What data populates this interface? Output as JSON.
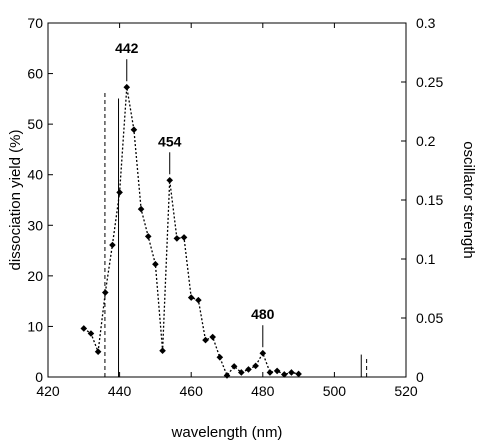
{
  "chart_data": {
    "type": "line",
    "xlabel": "wavelength (nm)",
    "ylabel": "dissociation yield (%)",
    "y2label": "oscillator strength",
    "xlim": [
      420,
      520
    ],
    "ylim": [
      0,
      70
    ],
    "y2lim": [
      0,
      0.3
    ],
    "xticks": [
      "420",
      "440",
      "460",
      "480",
      "500",
      "520"
    ],
    "yticks": [
      "0",
      "10",
      "20",
      "30",
      "40",
      "50",
      "60",
      "70"
    ],
    "y2ticks": [
      "0",
      "0.05",
      "0.1",
      "0.15",
      "0.2",
      "0.25",
      "0.3"
    ],
    "grid": false,
    "series": [
      {
        "style": "dotted line with diamond markers",
        "axis": "left",
        "x": [
          430,
          432,
          434,
          436,
          438,
          440,
          442,
          444,
          446,
          448,
          450,
          452,
          454,
          456,
          458,
          460,
          462,
          464,
          466,
          468,
          470,
          472,
          474,
          476,
          478,
          480,
          482,
          484,
          486,
          488,
          490
        ],
        "y": [
          9.6,
          8.6,
          5.0,
          16.7,
          26.1,
          36.5,
          57.3,
          48.9,
          33.2,
          27.8,
          22.3,
          5.2,
          38.9,
          27.4,
          27.6,
          15.7,
          15.2,
          7.3,
          7.9,
          3.9,
          0.3,
          2.1,
          0.9,
          1.5,
          2.2,
          4.7,
          0.9,
          1.2,
          0.5,
          0.9,
          0.6
        ]
      },
      {
        "style": "solid vertical sticks",
        "axis": "right",
        "x": [
          439.7,
          507.5
        ],
        "y": [
          0.236,
          0.019
        ]
      },
      {
        "style": "dashed vertical sticks",
        "axis": "right",
        "x": [
          435.9,
          509.0
        ],
        "y": [
          0.243,
          0.016
        ]
      }
    ],
    "annotations": [
      {
        "text": "442",
        "x": 442,
        "y": 57.3
      },
      {
        "text": "454",
        "x": 454,
        "y": 38.9
      },
      {
        "text": "480",
        "x": 480,
        "y": 4.7
      }
    ]
  }
}
